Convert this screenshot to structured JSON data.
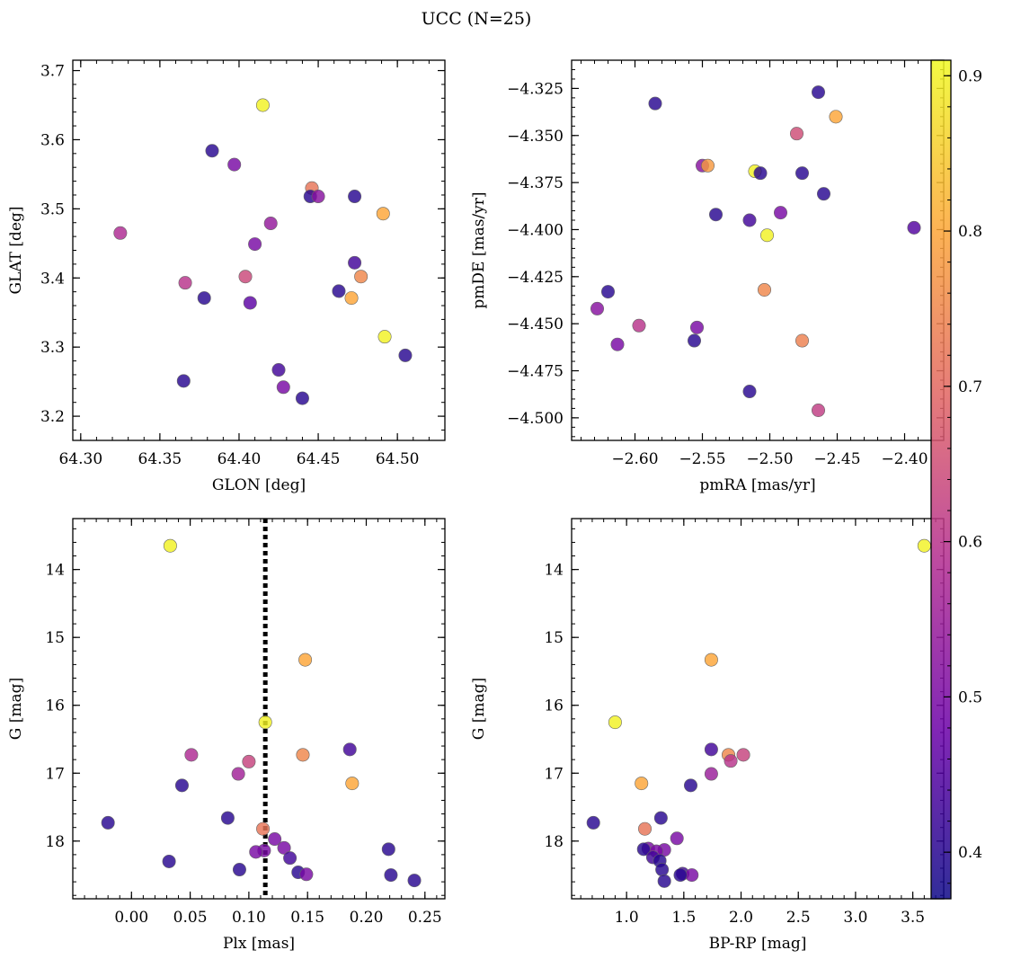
{
  "figure": {
    "title": "UCC (N=25)"
  },
  "colorbar": {
    "range": [
      0.37,
      0.91
    ],
    "ticks": [
      0.4,
      0.5,
      0.6,
      0.7,
      0.8,
      0.9
    ],
    "colormap": [
      "#0d0887",
      "#6a00a8",
      "#b12a90",
      "#e16462",
      "#fca636",
      "#f0f921"
    ]
  },
  "chart_data": [
    {
      "type": "scatter",
      "xlabel": "GLON [deg]",
      "ylabel": "GLAT [deg]",
      "xlim": [
        64.295,
        64.53
      ],
      "ylim": [
        3.165,
        3.715
      ],
      "x_invert": false,
      "y_invert": false,
      "xticks": [
        64.3,
        64.35,
        64.4,
        64.45,
        64.5
      ],
      "yticks": [
        3.2,
        3.3,
        3.4,
        3.5,
        3.6,
        3.7
      ],
      "xtick_decimals": 2,
      "ytick_decimals": 1,
      "points": [
        {
          "x": 64.415,
          "y": 3.65,
          "c": 0.9
        },
        {
          "x": 64.383,
          "y": 3.584,
          "c": 0.4
        },
        {
          "x": 64.397,
          "y": 3.564,
          "c": 0.5
        },
        {
          "x": 64.446,
          "y": 3.53,
          "c": 0.72
        },
        {
          "x": 64.445,
          "y": 3.518,
          "c": 0.4
        },
        {
          "x": 64.45,
          "y": 3.518,
          "c": 0.52
        },
        {
          "x": 64.473,
          "y": 3.518,
          "c": 0.4
        },
        {
          "x": 64.491,
          "y": 3.493,
          "c": 0.8
        },
        {
          "x": 64.42,
          "y": 3.479,
          "c": 0.54
        },
        {
          "x": 64.325,
          "y": 3.465,
          "c": 0.58
        },
        {
          "x": 64.41,
          "y": 3.449,
          "c": 0.5
        },
        {
          "x": 64.473,
          "y": 3.422,
          "c": 0.43
        },
        {
          "x": 64.404,
          "y": 3.402,
          "c": 0.64
        },
        {
          "x": 64.477,
          "y": 3.402,
          "c": 0.75
        },
        {
          "x": 64.366,
          "y": 3.393,
          "c": 0.6
        },
        {
          "x": 64.463,
          "y": 3.381,
          "c": 0.4
        },
        {
          "x": 64.378,
          "y": 3.371,
          "c": 0.4
        },
        {
          "x": 64.471,
          "y": 3.371,
          "c": 0.8
        },
        {
          "x": 64.407,
          "y": 3.364,
          "c": 0.46
        },
        {
          "x": 64.492,
          "y": 3.315,
          "c": 0.9
        },
        {
          "x": 64.505,
          "y": 3.288,
          "c": 0.4
        },
        {
          "x": 64.425,
          "y": 3.267,
          "c": 0.43
        },
        {
          "x": 64.365,
          "y": 3.251,
          "c": 0.4
        },
        {
          "x": 64.428,
          "y": 3.242,
          "c": 0.5
        },
        {
          "x": 64.44,
          "y": 3.226,
          "c": 0.4
        }
      ]
    },
    {
      "type": "scatter",
      "xlabel": "pmRA [mas/yr]",
      "ylabel": "pmDE [mas/yr]",
      "xlim": [
        -2.647,
        -2.371
      ],
      "ylim": [
        -4.512,
        -4.31
      ],
      "x_invert": false,
      "y_invert": false,
      "xticks": [
        -2.6,
        -2.55,
        -2.5,
        -2.45,
        -2.4
      ],
      "yticks": [
        -4.5,
        -4.475,
        -4.45,
        -4.425,
        -4.4,
        -4.375,
        -4.35,
        -4.325
      ],
      "xtick_decimals": 2,
      "ytick_decimals": 3,
      "points": [
        {
          "x": -2.464,
          "y": -4.327,
          "c": 0.4
        },
        {
          "x": -2.585,
          "y": -4.333,
          "c": 0.4
        },
        {
          "x": -2.451,
          "y": -4.34,
          "c": 0.8
        },
        {
          "x": -2.48,
          "y": -4.349,
          "c": 0.65
        },
        {
          "x": -2.55,
          "y": -4.366,
          "c": 0.52
        },
        {
          "x": -2.546,
          "y": -4.366,
          "c": 0.78
        },
        {
          "x": -2.511,
          "y": -4.369,
          "c": 0.9
        },
        {
          "x": -2.507,
          "y": -4.37,
          "c": 0.4
        },
        {
          "x": -2.476,
          "y": -4.37,
          "c": 0.4
        },
        {
          "x": -2.46,
          "y": -4.381,
          "c": 0.4
        },
        {
          "x": -2.54,
          "y": -4.392,
          "c": 0.4
        },
        {
          "x": -2.492,
          "y": -4.391,
          "c": 0.5
        },
        {
          "x": -2.515,
          "y": -4.395,
          "c": 0.43
        },
        {
          "x": -2.393,
          "y": -4.399,
          "c": 0.45
        },
        {
          "x": -2.502,
          "y": -4.403,
          "c": 0.9
        },
        {
          "x": -2.504,
          "y": -4.432,
          "c": 0.75
        },
        {
          "x": -2.62,
          "y": -4.433,
          "c": 0.4
        },
        {
          "x": -2.628,
          "y": -4.442,
          "c": 0.52
        },
        {
          "x": -2.597,
          "y": -4.451,
          "c": 0.6
        },
        {
          "x": -2.554,
          "y": -4.452,
          "c": 0.5
        },
        {
          "x": -2.556,
          "y": -4.459,
          "c": 0.4
        },
        {
          "x": -2.476,
          "y": -4.459,
          "c": 0.74
        },
        {
          "x": -2.613,
          "y": -4.461,
          "c": 0.5
        },
        {
          "x": -2.515,
          "y": -4.486,
          "c": 0.4
        },
        {
          "x": -2.464,
          "y": -4.496,
          "c": 0.62
        }
      ]
    },
    {
      "type": "scatter",
      "xlabel": "Plx [mas]",
      "ylabel": "G [mag]",
      "xlim": [
        -0.05,
        0.267
      ],
      "ylim": [
        18.85,
        13.25
      ],
      "x_invert": false,
      "y_invert": true,
      "xticks": [
        0.0,
        0.05,
        0.1,
        0.15,
        0.2,
        0.25
      ],
      "yticks": [
        14,
        15,
        16,
        17,
        18
      ],
      "xtick_decimals": 2,
      "ytick_decimals": 0,
      "vline": {
        "x": 0.114,
        "style": "dotted"
      },
      "points": [
        {
          "x": 0.033,
          "y": 13.65,
          "c": 0.9
        },
        {
          "x": 0.148,
          "y": 15.33,
          "c": 0.8
        },
        {
          "x": 0.114,
          "y": 16.25,
          "c": 0.9
        },
        {
          "x": 0.186,
          "y": 16.65,
          "c": 0.43
        },
        {
          "x": 0.051,
          "y": 16.73,
          "c": 0.58
        },
        {
          "x": 0.146,
          "y": 16.73,
          "c": 0.75
        },
        {
          "x": 0.1,
          "y": 16.83,
          "c": 0.63
        },
        {
          "x": 0.091,
          "y": 17.01,
          "c": 0.56
        },
        {
          "x": 0.188,
          "y": 17.15,
          "c": 0.8
        },
        {
          "x": 0.043,
          "y": 17.18,
          "c": 0.4
        },
        {
          "x": 0.082,
          "y": 17.66,
          "c": 0.4
        },
        {
          "x": -0.02,
          "y": 17.73,
          "c": 0.4
        },
        {
          "x": 0.112,
          "y": 17.82,
          "c": 0.72
        },
        {
          "x": 0.122,
          "y": 17.97,
          "c": 0.5
        },
        {
          "x": 0.13,
          "y": 18.1,
          "c": 0.5
        },
        {
          "x": 0.219,
          "y": 18.12,
          "c": 0.4
        },
        {
          "x": 0.113,
          "y": 18.14,
          "c": 0.5
        },
        {
          "x": 0.106,
          "y": 18.16,
          "c": 0.5
        },
        {
          "x": 0.135,
          "y": 18.25,
          "c": 0.43
        },
        {
          "x": 0.032,
          "y": 18.3,
          "c": 0.4
        },
        {
          "x": 0.092,
          "y": 18.42,
          "c": 0.4
        },
        {
          "x": 0.142,
          "y": 18.46,
          "c": 0.4
        },
        {
          "x": 0.149,
          "y": 18.49,
          "c": 0.5
        },
        {
          "x": 0.221,
          "y": 18.5,
          "c": 0.4
        },
        {
          "x": 0.241,
          "y": 18.58,
          "c": 0.4
        }
      ]
    },
    {
      "type": "scatter",
      "xlabel": "BP-RP [mag]",
      "ylabel": "G [mag]",
      "xlim": [
        0.52,
        3.77
      ],
      "ylim": [
        18.85,
        13.25
      ],
      "x_invert": false,
      "y_invert": true,
      "xticks": [
        1.0,
        1.5,
        2.0,
        2.5,
        3.0,
        3.5
      ],
      "yticks": [
        14,
        15,
        16,
        17,
        18
      ],
      "xtick_decimals": 1,
      "ytick_decimals": 0,
      "points": [
        {
          "x": 3.6,
          "y": 13.65,
          "c": 0.9
        },
        {
          "x": 1.74,
          "y": 15.33,
          "c": 0.8
        },
        {
          "x": 0.9,
          "y": 16.25,
          "c": 0.9
        },
        {
          "x": 1.74,
          "y": 16.65,
          "c": 0.43
        },
        {
          "x": 1.89,
          "y": 16.73,
          "c": 0.75
        },
        {
          "x": 2.02,
          "y": 16.73,
          "c": 0.63
        },
        {
          "x": 1.91,
          "y": 16.82,
          "c": 0.6
        },
        {
          "x": 1.74,
          "y": 17.01,
          "c": 0.55
        },
        {
          "x": 1.13,
          "y": 17.15,
          "c": 0.8
        },
        {
          "x": 1.56,
          "y": 17.18,
          "c": 0.4
        },
        {
          "x": 1.3,
          "y": 17.66,
          "c": 0.4
        },
        {
          "x": 0.71,
          "y": 17.73,
          "c": 0.4
        },
        {
          "x": 1.16,
          "y": 17.82,
          "c": 0.72
        },
        {
          "x": 1.44,
          "y": 17.96,
          "c": 0.5
        },
        {
          "x": 1.33,
          "y": 18.13,
          "c": 0.5
        },
        {
          "x": 1.19,
          "y": 18.11,
          "c": 0.5
        },
        {
          "x": 1.15,
          "y": 18.12,
          "c": 0.4
        },
        {
          "x": 1.26,
          "y": 18.15,
          "c": 0.5
        },
        {
          "x": 1.23,
          "y": 18.24,
          "c": 0.43
        },
        {
          "x": 1.29,
          "y": 18.29,
          "c": 0.4
        },
        {
          "x": 1.31,
          "y": 18.42,
          "c": 0.4
        },
        {
          "x": 1.49,
          "y": 18.48,
          "c": 0.43
        },
        {
          "x": 1.57,
          "y": 18.5,
          "c": 0.5
        },
        {
          "x": 1.47,
          "y": 18.5,
          "c": 0.4
        },
        {
          "x": 1.33,
          "y": 18.59,
          "c": 0.4
        }
      ]
    }
  ]
}
